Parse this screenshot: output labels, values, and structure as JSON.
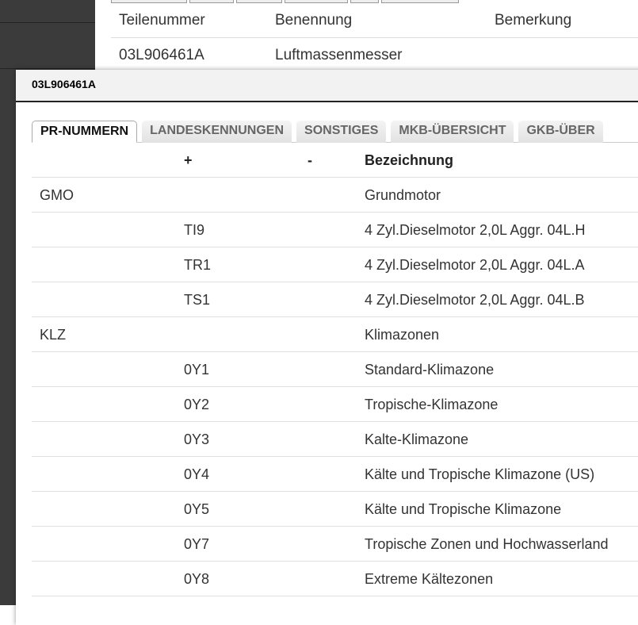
{
  "background": {
    "columns": [
      "Teilenummer",
      "Benennung",
      "Bemerkung"
    ],
    "row": {
      "teilenummer": "03L906461A",
      "benennung": "Luftmassenmesser",
      "bemerkung": ""
    }
  },
  "dialog": {
    "title": "03L906461A",
    "tabs": [
      {
        "label": "PR-NUMMERN",
        "active": true
      },
      {
        "label": "LANDESKENNUNGEN"
      },
      {
        "label": "SONSTIGES"
      },
      {
        "label": "MKB-ÜBERSICHT"
      },
      {
        "label": "GKB-ÜBER"
      }
    ],
    "columns": [
      "",
      "+",
      "-",
      "Bezeichnung"
    ],
    "rows": [
      [
        "GMO",
        "",
        "",
        "Grundmotor"
      ],
      [
        "",
        "TI9",
        "",
        "4 Zyl.Dieselmotor 2,0L Aggr. 04L.H"
      ],
      [
        "",
        "TR1",
        "",
        "4 Zyl.Dieselmotor 2,0L Aggr. 04L.A"
      ],
      [
        "",
        "TS1",
        "",
        "4 Zyl.Dieselmotor 2,0L Aggr. 04L.B"
      ],
      [
        "KLZ",
        "",
        "",
        "Klimazonen"
      ],
      [
        "",
        "0Y1",
        "",
        "Standard-Klimazone"
      ],
      [
        "",
        "0Y2",
        "",
        "Tropische-Klimazone"
      ],
      [
        "",
        "0Y3",
        "",
        "Kalte-Klimazone"
      ],
      [
        "",
        "0Y4",
        "",
        "Kälte und Tropische Klimazone (US)"
      ],
      [
        "",
        "0Y5",
        "",
        "Kälte und Tropische Klimazone"
      ],
      [
        "",
        "0Y7",
        "",
        "Tropische Zonen und Hochwasserland"
      ],
      [
        "",
        "0Y8",
        "",
        "Extreme Kältezonen"
      ]
    ]
  }
}
